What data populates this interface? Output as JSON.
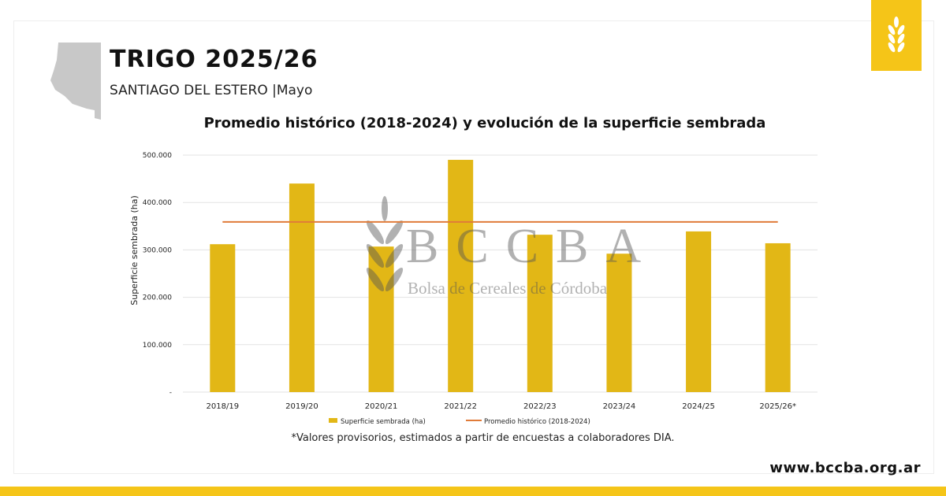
{
  "header": {
    "title": "TRIGO 2025/26",
    "subtitle": "SANTIAGO DEL ESTERO |Mayo",
    "badge_icon": "wheat-icon"
  },
  "colors": {
    "bar": "#e2b716",
    "line": "#e07b39",
    "accent": "#f5c518"
  },
  "watermark": {
    "title": "BCCBA",
    "subtitle": "Bolsa de Cereales de Córdoba"
  },
  "footer": {
    "note": "*Valores provisorios, estimados a partir de encuestas a colaboradores DIA.",
    "url": "www.bccba.org.ar"
  },
  "chart_data": {
    "type": "bar",
    "title": "Promedio histórico (2018-2024) y evolución de la superficie sembrada",
    "ylabel": "Superficie sembrada (ha)",
    "xlabel": "",
    "ylim": [
      0,
      500000
    ],
    "yticks": [
      0,
      100000,
      200000,
      300000,
      400000,
      500000
    ],
    "ytick_labels": [
      "-",
      "100.000",
      "200.000",
      "300.000",
      "400.000",
      "500.000"
    ],
    "grid": true,
    "legend": "bottom",
    "categories": [
      "2018/19",
      "2019/20",
      "2020/21",
      "2021/22",
      "2022/23",
      "2023/24",
      "2024/25",
      "2025/26*"
    ],
    "series": [
      {
        "name": "Superficie sembrada (ha)",
        "type": "bar",
        "values": [
          312000,
          440000,
          307000,
          490000,
          332000,
          292000,
          339000,
          314000
        ]
      },
      {
        "name": "Promedio histórico (2018-2024)",
        "type": "line",
        "values": [
          359000,
          359000,
          359000,
          359000,
          359000,
          359000,
          359000,
          359000
        ]
      }
    ]
  }
}
